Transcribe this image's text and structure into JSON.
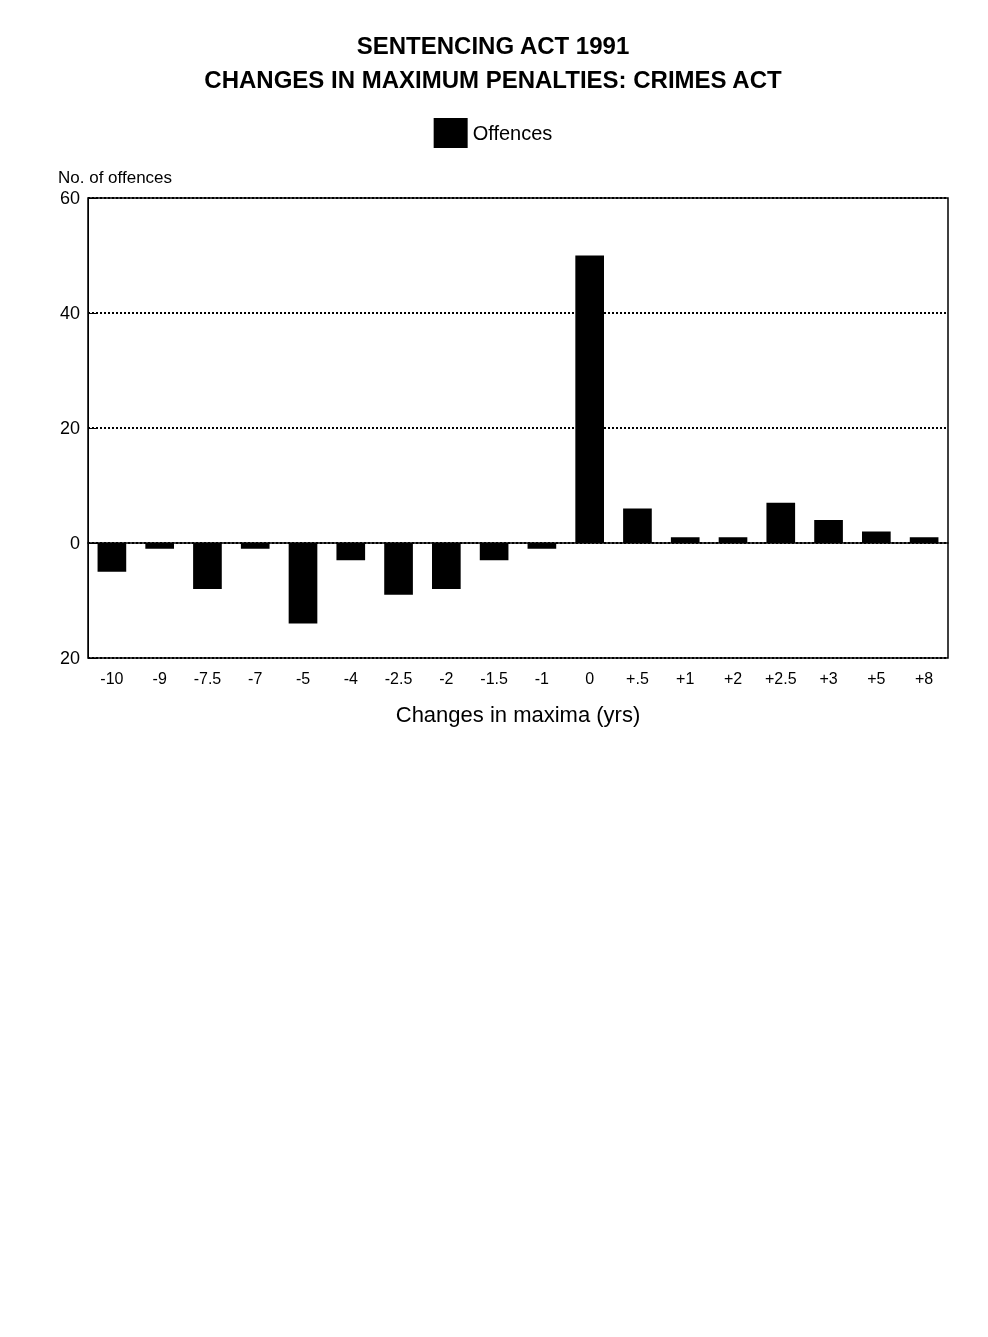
{
  "chart_data": {
    "type": "bar",
    "title": "SENTENCING ACT 1991",
    "subtitle": "CHANGES IN MAXIMUM PENALTIES: CRIMES ACT",
    "xlabel": "Changes in maxima (yrs)",
    "ylabel": "No. of offences",
    "categories": [
      "-10",
      "-9",
      "-7.5",
      "-7",
      "-5",
      "-4",
      "-2.5",
      "-2",
      "-1.5",
      "-1",
      "0",
      "+.5",
      "+1",
      "+2",
      "+2.5",
      "+3",
      "+5",
      "+8"
    ],
    "series": [
      {
        "name": "Offences",
        "color": "#000000",
        "values": [
          -5,
          -1,
          -8,
          -1,
          -14,
          -3,
          -9,
          -8,
          -3,
          -1,
          50,
          6,
          1,
          1,
          7,
          4,
          2,
          1
        ]
      }
    ],
    "ylim": [
      -20,
      60
    ],
    "yticks": [
      {
        "value": -20,
        "label": "20"
      },
      0,
      20,
      40,
      60
    ],
    "grid": "y",
    "legend": "top"
  }
}
